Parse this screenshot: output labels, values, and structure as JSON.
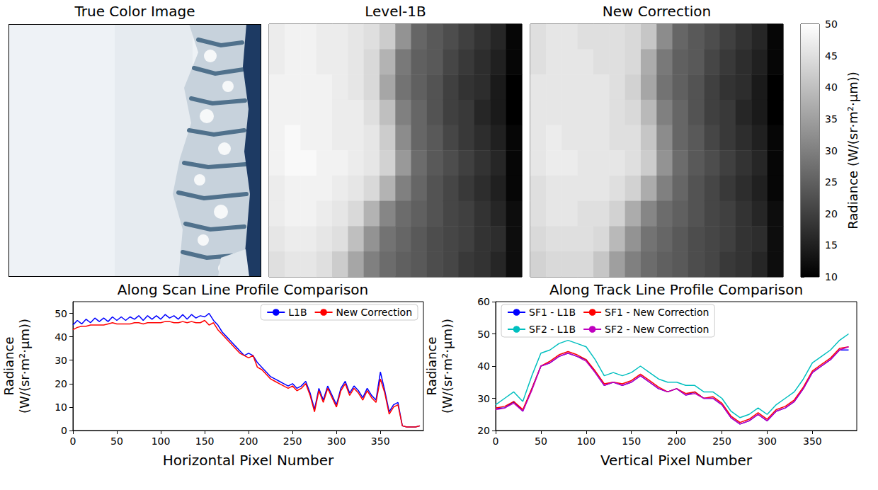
{
  "chart_data": [
    {
      "type": "image",
      "title": "True Color Image",
      "tick_labels": false
    },
    {
      "type": "heatmap",
      "title": "Level-1B",
      "tick_labels": false,
      "cells": [
        [
          47,
          48,
          48,
          47,
          47,
          46,
          45,
          42,
          33,
          26,
          24,
          22,
          20,
          18,
          16,
          11
        ],
        [
          47,
          48,
          48,
          47,
          47,
          46,
          44,
          38,
          29,
          25,
          24,
          21,
          19,
          17,
          15,
          11
        ],
        [
          48,
          48,
          48,
          48,
          47,
          46,
          44,
          36,
          28,
          25,
          23,
          20,
          18,
          17,
          14,
          10
        ],
        [
          48,
          48,
          48,
          48,
          47,
          47,
          45,
          40,
          30,
          26,
          23,
          20,
          19,
          16,
          14,
          10
        ],
        [
          48,
          49,
          48,
          48,
          47,
          47,
          46,
          42,
          32,
          26,
          24,
          21,
          19,
          17,
          15,
          11
        ],
        [
          48,
          49,
          49,
          48,
          48,
          47,
          46,
          43,
          34,
          27,
          24,
          22,
          20,
          18,
          16,
          11
        ],
        [
          47,
          48,
          48,
          48,
          47,
          46,
          44,
          38,
          30,
          26,
          23,
          21,
          19,
          17,
          15,
          11
        ],
        [
          47,
          48,
          48,
          47,
          46,
          44,
          38,
          31,
          27,
          25,
          23,
          21,
          20,
          18,
          16,
          12
        ],
        [
          46,
          47,
          47,
          46,
          45,
          40,
          33,
          28,
          26,
          24,
          22,
          21,
          20,
          18,
          17,
          12
        ],
        [
          45,
          46,
          46,
          45,
          42,
          36,
          30,
          27,
          25,
          24,
          22,
          21,
          19,
          18,
          16,
          12
        ]
      ]
    },
    {
      "type": "heatmap",
      "title": "New Correction",
      "tick_labels": false,
      "cells": [
        [
          45,
          46,
          46,
          45,
          45,
          45,
          44,
          41,
          32,
          26,
          24,
          22,
          20,
          18,
          16,
          11
        ],
        [
          45,
          46,
          46,
          46,
          45,
          45,
          44,
          37,
          29,
          25,
          24,
          21,
          19,
          17,
          15,
          11
        ],
        [
          46,
          46,
          46,
          46,
          46,
          45,
          43,
          36,
          28,
          25,
          23,
          20,
          18,
          17,
          14,
          10
        ],
        [
          46,
          46,
          46,
          46,
          46,
          45,
          44,
          39,
          30,
          26,
          23,
          20,
          19,
          16,
          14,
          10
        ],
        [
          46,
          47,
          46,
          46,
          46,
          45,
          45,
          41,
          32,
          26,
          24,
          21,
          19,
          17,
          15,
          11
        ],
        [
          46,
          47,
          47,
          46,
          46,
          46,
          45,
          42,
          33,
          27,
          24,
          22,
          20,
          18,
          16,
          11
        ],
        [
          45,
          46,
          46,
          46,
          46,
          45,
          43,
          37,
          30,
          26,
          23,
          21,
          19,
          17,
          15,
          11
        ],
        [
          45,
          46,
          46,
          45,
          45,
          43,
          37,
          31,
          27,
          25,
          23,
          21,
          20,
          18,
          16,
          12
        ],
        [
          44,
          45,
          45,
          45,
          44,
          39,
          33,
          28,
          26,
          24,
          22,
          21,
          20,
          18,
          17,
          12
        ],
        [
          43,
          44,
          44,
          44,
          41,
          35,
          30,
          27,
          25,
          24,
          22,
          21,
          19,
          18,
          16,
          12
        ]
      ]
    },
    {
      "type": "colorbar",
      "label": "Radiance (W/(sr·m²·µm))",
      "range": [
        10,
        50
      ],
      "ticks": [
        10,
        15,
        20,
        25,
        30,
        35,
        40,
        45,
        50
      ],
      "colors": [
        "#000000",
        "#ffffff"
      ]
    },
    {
      "type": "line",
      "title": "Along Scan Line Profile Comparison",
      "x_label": "Horizontal Pixel Number",
      "y_label": "Radiance (W/(sr·m²·µm))",
      "xlim": [
        0,
        399
      ],
      "xticks": [
        0,
        50,
        100,
        150,
        200,
        250,
        300,
        350
      ],
      "ylim": [
        0,
        55
      ],
      "yticks": [
        0,
        10,
        20,
        30,
        40,
        50
      ],
      "grid": false,
      "legend": "upper right",
      "x": [
        0,
        5,
        10,
        15,
        20,
        25,
        30,
        35,
        40,
        45,
        50,
        55,
        60,
        65,
        70,
        75,
        80,
        85,
        90,
        95,
        100,
        105,
        110,
        115,
        120,
        125,
        130,
        135,
        140,
        145,
        150,
        155,
        160,
        165,
        170,
        175,
        180,
        185,
        190,
        195,
        200,
        205,
        210,
        215,
        220,
        225,
        230,
        235,
        240,
        245,
        250,
        255,
        260,
        265,
        270,
        275,
        280,
        285,
        290,
        295,
        300,
        305,
        310,
        315,
        320,
        325,
        330,
        335,
        340,
        345,
        350,
        355,
        360,
        365,
        370,
        375,
        380,
        385,
        390,
        395
      ],
      "series": [
        {
          "name": "L1B",
          "color": "#0000ff",
          "values": [
            45,
            47,
            45.5,
            47.5,
            46,
            48,
            46.5,
            48,
            46.5,
            48.5,
            47,
            48.5,
            47,
            48.5,
            47.5,
            49,
            47,
            49,
            47.5,
            49,
            47.5,
            49.5,
            48,
            49,
            47.5,
            49.5,
            47.5,
            49.5,
            48,
            49,
            48.5,
            50,
            47,
            45,
            42,
            40,
            38,
            36,
            34,
            32,
            33,
            32,
            29,
            27,
            25,
            23,
            22,
            21,
            20,
            19,
            20,
            18,
            19,
            21,
            16,
            9,
            18,
            13,
            19,
            15,
            11,
            18,
            21,
            16,
            19,
            17,
            14,
            18,
            15,
            13,
            25,
            17,
            8,
            11,
            12,
            2,
            1.5,
            1.5,
            1.5,
            2
          ]
        },
        {
          "name": "New Correction",
          "color": "#ff0000",
          "values": [
            43,
            44,
            44.5,
            44.5,
            45,
            45,
            45,
            45,
            45.5,
            46,
            45.5,
            45.5,
            45.5,
            45.5,
            46,
            46,
            45.5,
            46,
            46,
            46,
            46,
            46.5,
            46.5,
            46,
            46,
            46.5,
            46,
            46.5,
            46,
            46,
            47,
            45,
            46,
            43,
            41,
            39,
            37,
            35,
            33,
            32,
            31,
            32,
            27,
            26,
            24,
            22,
            21,
            20,
            19,
            18,
            19,
            17,
            18,
            20,
            15,
            8,
            17,
            12,
            18,
            14,
            10,
            17,
            20,
            15,
            18,
            16,
            13,
            17,
            14,
            12,
            22,
            16,
            7,
            10,
            11,
            2,
            1.5,
            1.5,
            1.5,
            2
          ]
        }
      ]
    },
    {
      "type": "line",
      "title": "Along Track Line Profile Comparison",
      "x_label": "Vertical Pixel Number",
      "y_label": "Radiance (W/(sr·m²·µm))",
      "xlim": [
        0,
        399
      ],
      "xticks": [
        0,
        50,
        100,
        150,
        200,
        250,
        300,
        350
      ],
      "ylim": [
        20,
        60
      ],
      "yticks": [
        20,
        30,
        40,
        50,
        60
      ],
      "grid": false,
      "legend": "upper left",
      "x": [
        0,
        10,
        20,
        30,
        40,
        50,
        60,
        70,
        80,
        90,
        100,
        110,
        120,
        130,
        140,
        150,
        160,
        170,
        180,
        190,
        200,
        210,
        220,
        230,
        240,
        250,
        260,
        270,
        280,
        290,
        300,
        310,
        320,
        330,
        340,
        350,
        360,
        370,
        380,
        390
      ],
      "series": [
        {
          "name": "SF1 - L1B",
          "color": "#0000ff",
          "values": [
            27,
            27,
            29,
            26,
            33,
            40,
            41,
            43,
            44,
            43,
            42,
            38,
            34,
            35,
            34,
            35,
            37,
            35,
            33,
            32,
            33,
            31,
            32,
            30,
            30,
            28,
            24,
            22,
            23,
            25,
            23,
            26,
            27,
            29,
            33,
            38,
            40,
            42,
            45,
            45
          ]
        },
        {
          "name": "SF1 - New Correction",
          "color": "#ff0000",
          "values": [
            27,
            27.5,
            29,
            26.5,
            33,
            40,
            41.5,
            43.5,
            44.5,
            43.5,
            42,
            38.5,
            34.5,
            35,
            34.5,
            35.5,
            37.5,
            35.5,
            33.5,
            32,
            33,
            31.5,
            32,
            30,
            30.5,
            28.5,
            24.5,
            22.5,
            23.5,
            25.5,
            23.5,
            26.5,
            27.5,
            29.5,
            33.5,
            38.5,
            40.5,
            42.5,
            45.5,
            46
          ]
        },
        {
          "name": "SF2 - L1B",
          "color": "#00bfbf",
          "values": [
            28,
            30,
            32,
            29,
            37,
            44,
            45,
            47,
            48,
            47,
            46,
            42,
            37,
            38,
            37,
            38,
            40,
            38,
            36,
            35,
            35,
            34,
            34,
            32,
            32,
            30,
            26,
            24,
            25,
            27,
            25,
            28,
            30,
            32,
            36,
            41,
            43,
            45,
            48,
            50
          ]
        },
        {
          "name": "SF2 - New Correction",
          "color": "#bf00bf",
          "values": [
            26.5,
            27,
            28.5,
            26,
            32.5,
            40,
            41,
            43,
            44,
            43,
            41.5,
            38,
            34,
            35,
            34,
            35,
            37,
            35,
            33,
            32,
            33,
            31,
            31.5,
            30,
            30,
            28,
            24,
            22,
            23,
            25,
            23,
            26,
            27,
            29,
            33,
            38,
            40,
            42,
            45,
            46
          ]
        }
      ]
    }
  ]
}
